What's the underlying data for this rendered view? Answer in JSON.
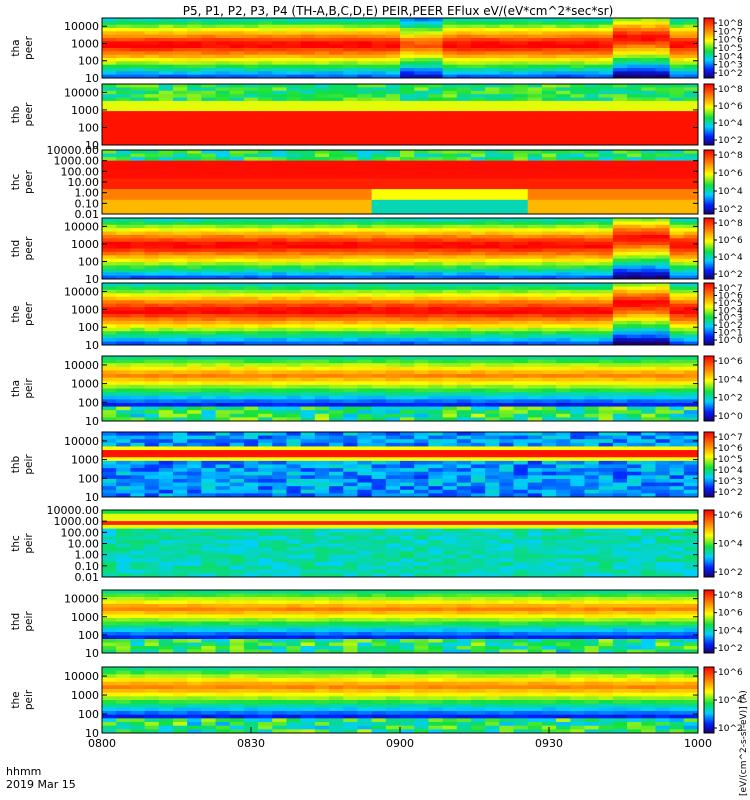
{
  "chart_data": {
    "type": "heatmap",
    "title": "P5, P1, P2, P3, P4 (TH-A,B,C,D,E) PEIR,PEER EFlux eV/(eV*cm^2*sec*sr)",
    "x_ticks": [
      "0800",
      "0830",
      "0900",
      "0930",
      "1000"
    ],
    "x_range": [
      "0800",
      "1000"
    ],
    "x_label": "hhmm",
    "date": "2019 Mar 15",
    "colorscale": "rainbow",
    "colorbar_label": "[eV/(cm^2-s-sr-eV)] (A)",
    "y_scale": "log",
    "panels": [
      {
        "id": "tha_peer",
        "probe": "tha",
        "product": "peer",
        "ylim": [
          10,
          30000
        ],
        "yticks": [
          "10000",
          "1000",
          "100",
          "10"
        ],
        "cb_ticks": [
          "10^8",
          "10^7",
          "10^6",
          "10^5",
          "10^4",
          "10^3",
          "10^2"
        ]
      },
      {
        "id": "thb_peer",
        "probe": "thb",
        "product": "peer",
        "ylim": [
          10,
          30000
        ],
        "yticks": [
          "10000",
          "1000",
          "100",
          "10"
        ],
        "cb_ticks": [
          "10^8",
          "10^6",
          "10^4",
          "10^2"
        ]
      },
      {
        "id": "thc_peer",
        "probe": "thc",
        "product": "peer",
        "ylim": [
          0.01,
          10000
        ],
        "yticks": [
          "10000.00",
          "1000.00",
          "100.00",
          "10.00",
          "1.00",
          "0.10",
          "0.01"
        ],
        "cb_ticks": [
          "10^8",
          "10^6",
          "10^4",
          "10^2"
        ]
      },
      {
        "id": "thd_peer",
        "probe": "thd",
        "product": "peer",
        "ylim": [
          10,
          30000
        ],
        "yticks": [
          "10000",
          "1000",
          "100",
          "10"
        ],
        "cb_ticks": [
          "10^8",
          "10^6",
          "10^4",
          "10^2"
        ]
      },
      {
        "id": "the_peer",
        "probe": "the",
        "product": "peer",
        "ylim": [
          10,
          30000
        ],
        "yticks": [
          "10000",
          "1000",
          "100",
          "10"
        ],
        "cb_ticks": [
          "10^7",
          "10^6",
          "10^5",
          "10^4",
          "10^3",
          "10^2",
          "10^1",
          "10^0"
        ]
      },
      {
        "id": "tha_peir",
        "probe": "tha",
        "product": "peir",
        "ylim": [
          10,
          30000
        ],
        "yticks": [
          "10000",
          "1000",
          "100",
          "10"
        ],
        "cb_ticks": [
          "10^6",
          "10^4",
          "10^2",
          "10^0"
        ]
      },
      {
        "id": "thb_peir",
        "probe": "thb",
        "product": "peir",
        "ylim": [
          10,
          30000
        ],
        "yticks": [
          "10000",
          "1000",
          "100",
          "10"
        ],
        "cb_ticks": [
          "10^7",
          "10^6",
          "10^5",
          "10^4",
          "10^3",
          "10^2"
        ]
      },
      {
        "id": "thc_peir",
        "probe": "thc",
        "product": "peir",
        "ylim": [
          0.01,
          10000
        ],
        "yticks": [
          "10000.00",
          "1000.00",
          "100.00",
          "10.00",
          "1.00",
          "0.10",
          "0.01"
        ],
        "cb_ticks": [
          "10^6",
          "10^4",
          "10^2"
        ]
      },
      {
        "id": "thd_peir",
        "probe": "thd",
        "product": "peir",
        "ylim": [
          10,
          30000
        ],
        "yticks": [
          "10000",
          "1000",
          "100",
          "10"
        ],
        "cb_ticks": [
          "10^8",
          "10^6",
          "10^4",
          "10^2"
        ]
      },
      {
        "id": "the_peir",
        "probe": "the",
        "product": "peir",
        "ylim": [
          10,
          30000
        ],
        "yticks": [
          "10000",
          "1000",
          "100",
          "10"
        ],
        "cb_ticks": [
          "10^6",
          "10^4",
          "10^2"
        ]
      }
    ]
  }
}
